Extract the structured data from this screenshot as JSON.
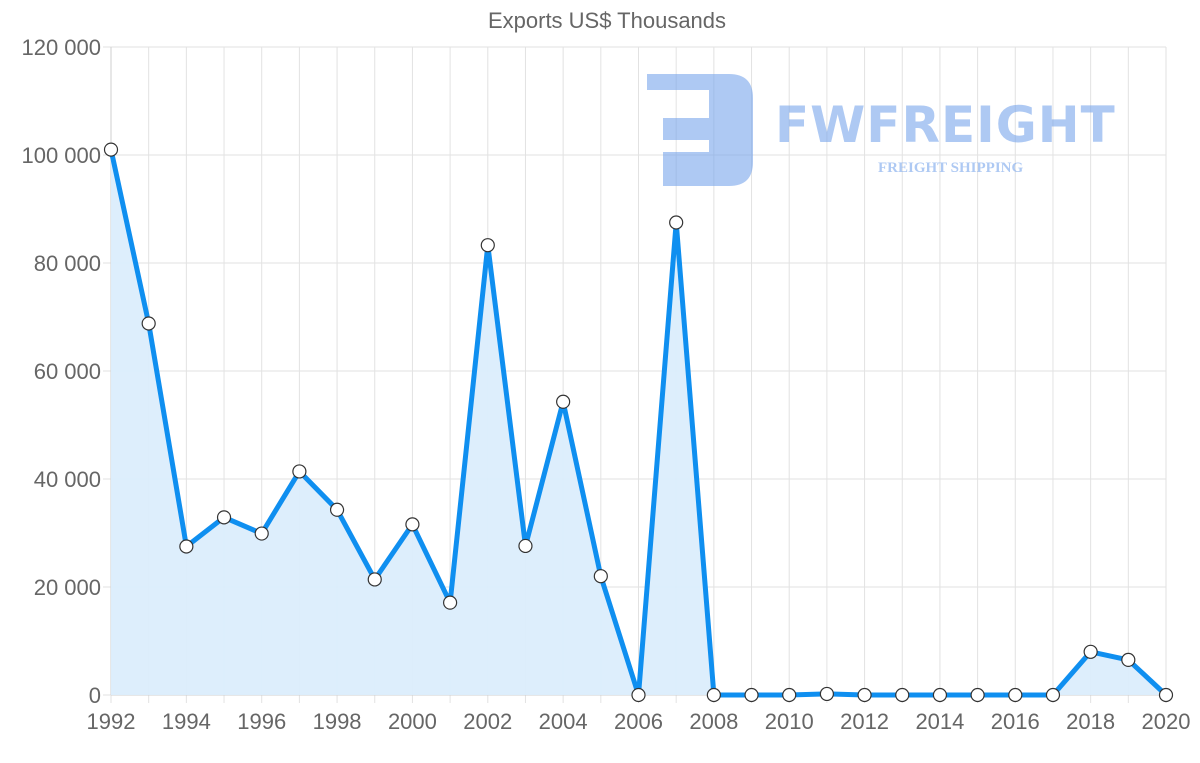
{
  "chart_data": {
    "type": "area",
    "title": "Exports US$ Thousands",
    "xlabel": "",
    "ylabel": "",
    "x": [
      1992,
      1993,
      1994,
      1995,
      1996,
      1997,
      1998,
      1999,
      2000,
      2001,
      2002,
      2003,
      2004,
      2005,
      2006,
      2007,
      2008,
      2009,
      2010,
      2011,
      2012,
      2013,
      2014,
      2015,
      2016,
      2017,
      2018,
      2019,
      2020
    ],
    "series": [
      {
        "name": "Exports US$ Thousands",
        "values": [
          101000,
          68800,
          27500,
          32900,
          29900,
          41400,
          34300,
          21400,
          31600,
          17100,
          83300,
          27600,
          54300,
          22000,
          0,
          87500,
          0,
          0,
          0,
          200,
          0,
          0,
          0,
          0,
          0,
          0,
          8000,
          6500,
          0
        ]
      }
    ],
    "ylim": [
      0,
      120000
    ],
    "y_ticks": [
      "0",
      "20 000",
      "40 000",
      "60 000",
      "80 000",
      "100 000",
      "120 000"
    ],
    "x_ticks": [
      "1992",
      "1994",
      "1996",
      "1998",
      "2000",
      "2002",
      "2004",
      "2006",
      "2008",
      "2010",
      "2012",
      "2014",
      "2016",
      "2018",
      "2020"
    ],
    "grid": true,
    "legend": "none",
    "colors": {
      "line": "#0f8ff0",
      "fill": "#dbedfc",
      "point_fill": "#ffffff",
      "point_stroke": "#333333",
      "grid": "#e2e2e2"
    }
  },
  "watermark": {
    "brand": "FWFREIGHT",
    "tagline": "FREIGHT SHIPPING"
  }
}
